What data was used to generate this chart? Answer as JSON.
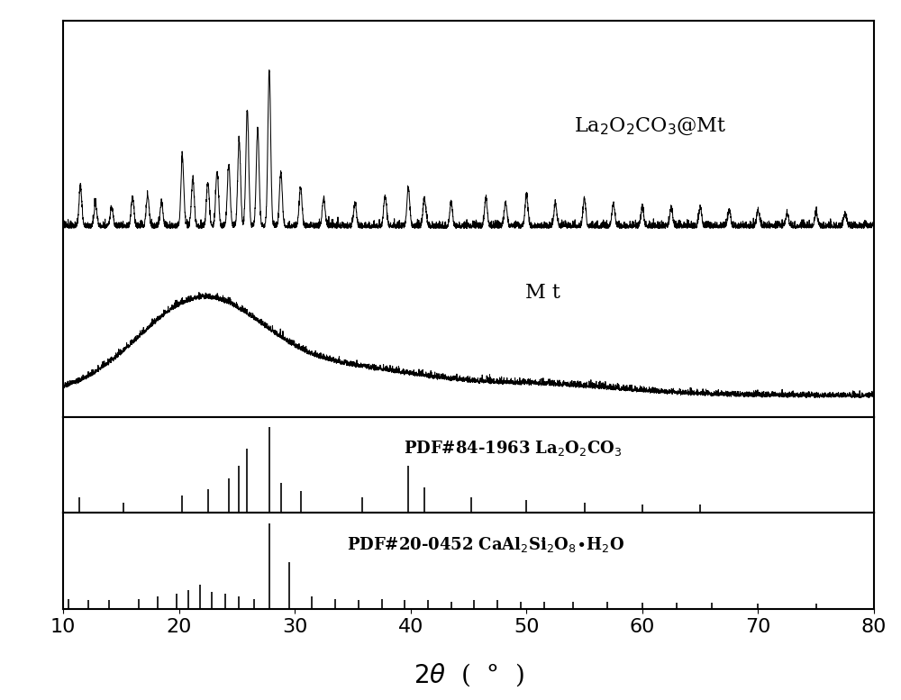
{
  "xlim": [
    10,
    80
  ],
  "tick_fontsize": 16,
  "background_color": "#ffffff",
  "line_color": "#000000",
  "la_peaks": [
    11.5,
    12.8,
    14.2,
    16.0,
    17.3,
    18.5,
    20.3,
    21.2,
    22.5,
    23.3,
    24.3,
    25.2,
    25.9,
    26.8,
    27.8,
    28.8,
    30.5,
    32.5,
    35.2,
    37.8,
    39.8,
    41.2,
    43.5,
    46.5,
    48.2,
    50.0,
    52.5,
    55.0,
    57.5,
    60.0,
    62.5,
    65.0,
    67.5,
    70.0,
    72.5,
    75.0,
    77.5
  ],
  "la_intensities": [
    0.25,
    0.15,
    0.12,
    0.18,
    0.2,
    0.15,
    0.45,
    0.3,
    0.28,
    0.35,
    0.4,
    0.55,
    0.75,
    0.62,
    1.0,
    0.35,
    0.25,
    0.18,
    0.15,
    0.2,
    0.25,
    0.18,
    0.15,
    0.18,
    0.15,
    0.2,
    0.15,
    0.18,
    0.15,
    0.12,
    0.12,
    0.12,
    0.1,
    0.1,
    0.08,
    0.08,
    0.08
  ],
  "pdf1_peaks": [
    11.4,
    15.2,
    20.3,
    22.5,
    24.3,
    25.2,
    25.9,
    27.8,
    28.8,
    30.5,
    35.8,
    39.8,
    41.2,
    45.2,
    50.0,
    55.0,
    60.0,
    65.0
  ],
  "pdf1_intensities": [
    0.18,
    0.12,
    0.2,
    0.28,
    0.4,
    0.55,
    0.75,
    1.0,
    0.35,
    0.25,
    0.18,
    0.55,
    0.3,
    0.18,
    0.15,
    0.12,
    0.1,
    0.1
  ],
  "pdf2_peaks": [
    10.5,
    12.2,
    14.0,
    16.5,
    18.2,
    19.8,
    20.8,
    21.8,
    22.8,
    24.0,
    25.2,
    26.5,
    27.8,
    29.5,
    31.5,
    33.5,
    35.5,
    37.5,
    39.5,
    41.5,
    43.5,
    45.5,
    47.5,
    49.5,
    51.5,
    54.0,
    57.0,
    60.0,
    63.0,
    66.0,
    70.0,
    75.0
  ],
  "pdf2_intensities": [
    0.12,
    0.1,
    0.1,
    0.12,
    0.15,
    0.18,
    0.22,
    0.28,
    0.2,
    0.18,
    0.15,
    0.12,
    1.0,
    0.55,
    0.15,
    0.12,
    0.1,
    0.12,
    0.1,
    0.1,
    0.08,
    0.1,
    0.1,
    0.08,
    0.08,
    0.08,
    0.08,
    0.07,
    0.07,
    0.07,
    0.06,
    0.06
  ]
}
